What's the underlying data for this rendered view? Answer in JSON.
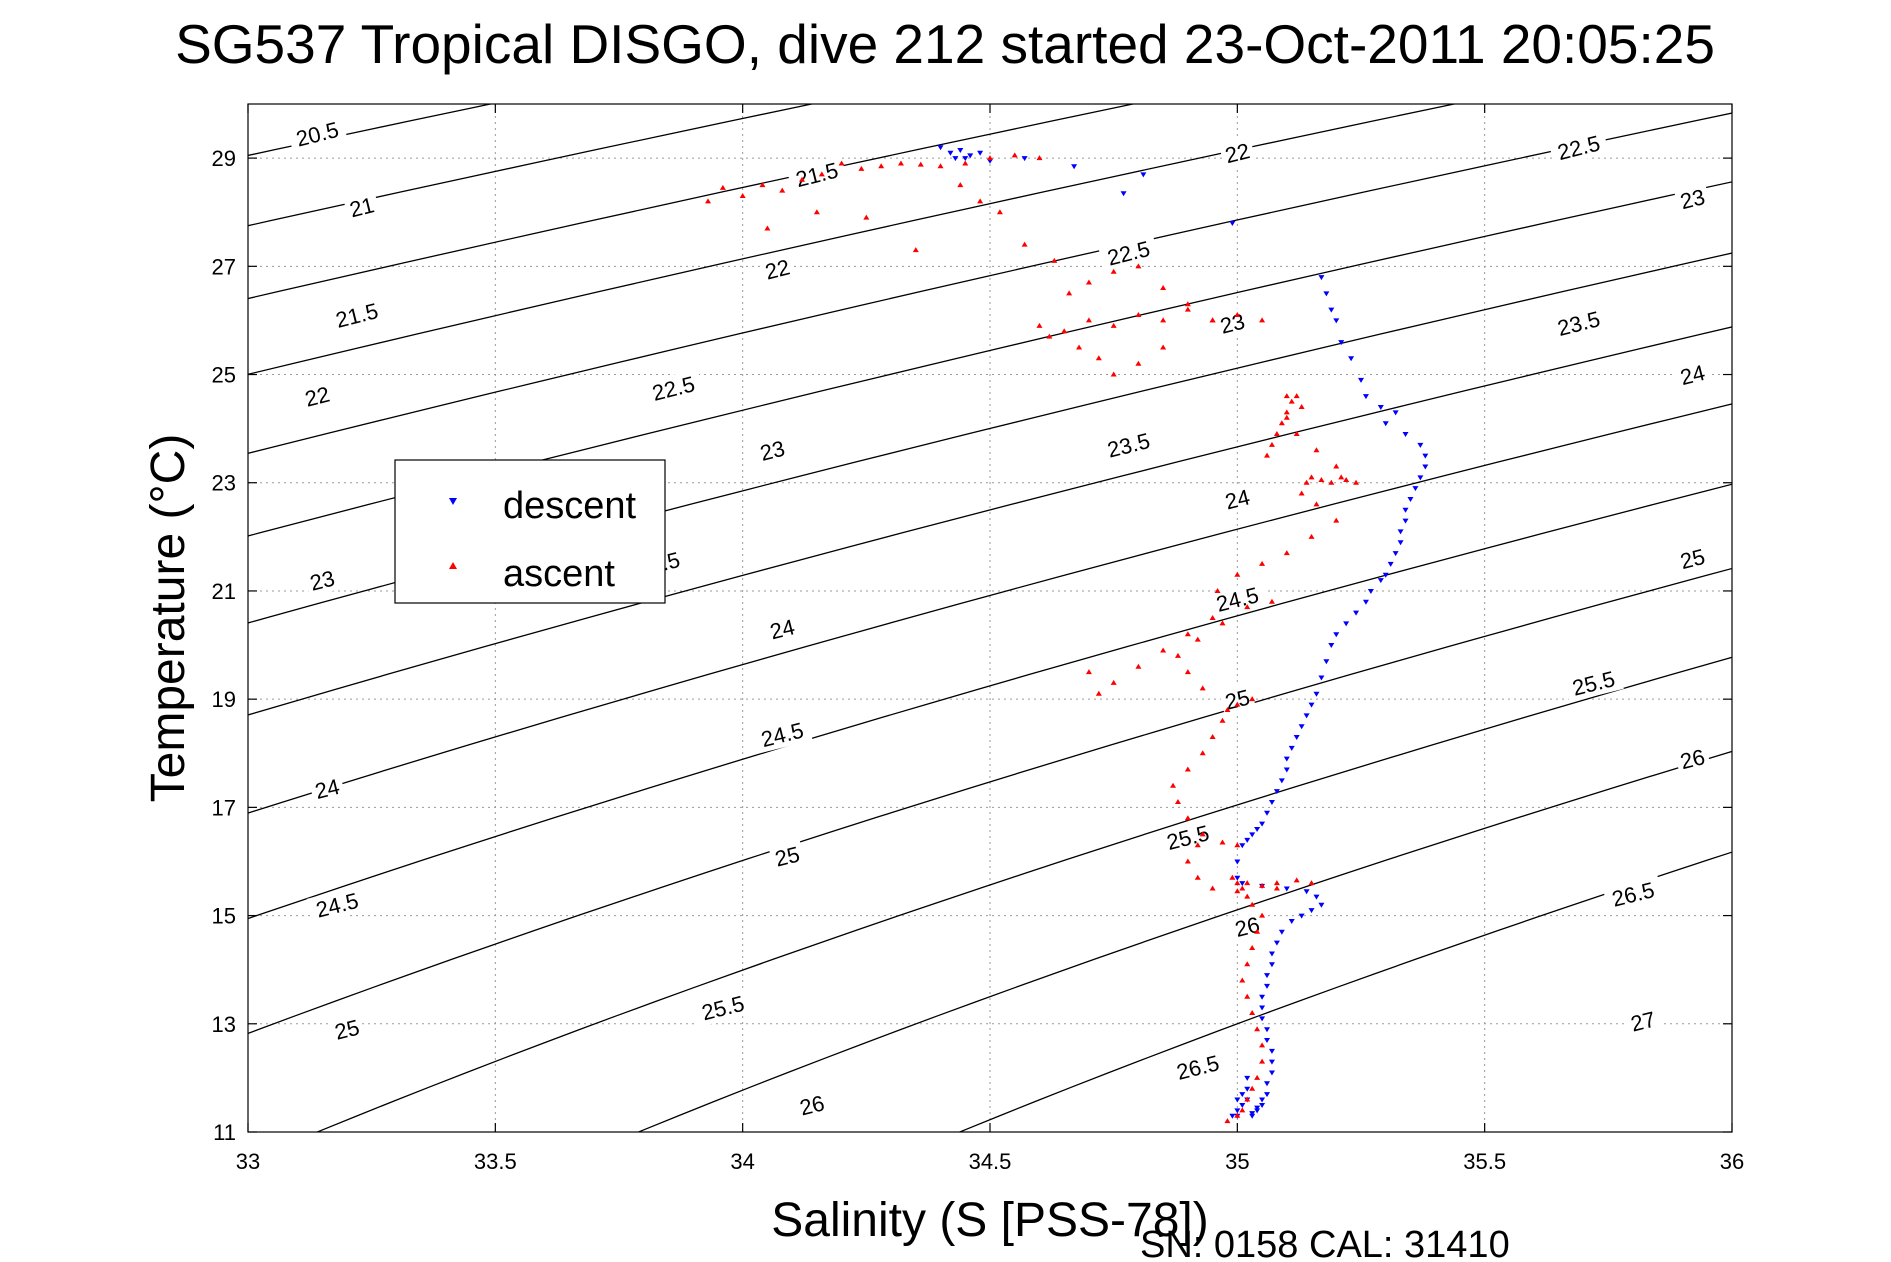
{
  "chart_data": {
    "type": "scatter",
    "title": "SG537 Tropical DISGO, dive 212 started 23-Oct-2011 20:05:25",
    "xlabel": "Salinity (S [PSS-78])",
    "ylabel": "Temperature (°C)",
    "xlim": [
      33,
      36
    ],
    "ylim": [
      11,
      30
    ],
    "x_ticks": [
      33,
      33.5,
      34,
      34.5,
      35,
      35.5,
      36
    ],
    "x_tick_labels": [
      "33",
      "33.5",
      "34",
      "34.5",
      "35",
      "35.5",
      "36"
    ],
    "y_ticks": [
      11,
      13,
      15,
      17,
      19,
      21,
      23,
      25,
      27,
      29
    ],
    "y_tick_labels": [
      "11",
      "13",
      "15",
      "17",
      "19",
      "21",
      "23",
      "25",
      "27",
      "29"
    ],
    "grid": true,
    "legend_position": "middle-left",
    "footnote": "SN: 0158  CAL: 31410",
    "contours": {
      "description_unit": "sigma-theta",
      "levels": [
        20.5,
        21,
        21.5,
        22,
        22.5,
        23,
        23.5,
        24,
        24.5,
        25,
        25.5,
        26,
        26.5,
        27
      ],
      "labels": [
        {
          "text": "20.5",
          "s": 33.14,
          "t": 29.45
        },
        {
          "text": "21",
          "s": 33.23,
          "t": 28.1
        },
        {
          "text": "21.5",
          "s": 33.22,
          "t": 26.1
        },
        {
          "text": "22",
          "s": 33.14,
          "t": 24.6
        },
        {
          "text": "23",
          "s": 33.15,
          "t": 21.2
        },
        {
          "text": "24",
          "s": 33.16,
          "t": 17.35
        },
        {
          "text": "24.5",
          "s": 33.18,
          "t": 15.2
        },
        {
          "text": "25",
          "s": 33.2,
          "t": 12.9
        },
        {
          "text": "21.5",
          "s": 34.15,
          "t": 28.7
        },
        {
          "text": "22",
          "s": 34.07,
          "t": 26.95
        },
        {
          "text": "22.5",
          "s": 33.86,
          "t": 24.75
        },
        {
          "text": "23",
          "s": 34.06,
          "t": 23.6
        },
        {
          "text": "23.5",
          "s": 33.83,
          "t": 21.5
        },
        {
          "text": "24",
          "s": 34.08,
          "t": 20.3
        },
        {
          "text": "24.5",
          "s": 34.08,
          "t": 18.35
        },
        {
          "text": "25",
          "s": 34.09,
          "t": 16.1
        },
        {
          "text": "25.5",
          "s": 33.96,
          "t": 13.3
        },
        {
          "text": "26",
          "s": 34.14,
          "t": 11.5
        },
        {
          "text": "22.5",
          "s": 34.78,
          "t": 27.25
        },
        {
          "text": "23",
          "s": 34.99,
          "t": 25.95
        },
        {
          "text": "23.5",
          "s": 34.78,
          "t": 23.7
        },
        {
          "text": "24",
          "s": 35.0,
          "t": 22.7
        },
        {
          "text": "24.5",
          "s": 35.0,
          "t": 20.85
        },
        {
          "text": "25",
          "s": 35.0,
          "t": 19.0
        },
        {
          "text": "25.5",
          "s": 34.9,
          "t": 16.45
        },
        {
          "text": "26",
          "s": 35.02,
          "t": 14.8
        },
        {
          "text": "26.5",
          "s": 34.92,
          "t": 12.2
        },
        {
          "text": "22",
          "s": 35.0,
          "t": 29.1
        },
        {
          "text": "22.5",
          "s": 35.69,
          "t": 29.2
        },
        {
          "text": "23",
          "s": 35.92,
          "t": 28.25
        },
        {
          "text": "23.5",
          "s": 35.69,
          "t": 25.95
        },
        {
          "text": "24",
          "s": 35.92,
          "t": 25.0
        },
        {
          "text": "25",
          "s": 35.92,
          "t": 21.6
        },
        {
          "text": "25.5",
          "s": 35.72,
          "t": 19.3
        },
        {
          "text": "26",
          "s": 35.92,
          "t": 17.9
        },
        {
          "text": "26.5",
          "s": 35.8,
          "t": 15.4
        },
        {
          "text": "27",
          "s": 35.82,
          "t": 13.05
        }
      ]
    },
    "series": [
      {
        "name": "descent",
        "color": "#0000ff",
        "marker": "triangle-down",
        "s": [
          34.4,
          34.42,
          34.43,
          34.44,
          34.45,
          34.46,
          34.48,
          34.5,
          34.57,
          34.67,
          34.77,
          34.81,
          34.99,
          35.17,
          35.18,
          35.19,
          35.2,
          35.21,
          35.23,
          35.25,
          35.26,
          35.29,
          35.3,
          35.32,
          35.34,
          35.37,
          35.38,
          35.38,
          35.37,
          35.36,
          35.35,
          35.34,
          35.34,
          35.33,
          35.33,
          35.32,
          35.31,
          35.3,
          35.29,
          35.27,
          35.26,
          35.24,
          35.22,
          35.2,
          35.19,
          35.18,
          35.17,
          35.16,
          35.15,
          35.14,
          35.13,
          35.12,
          35.11,
          35.1,
          35.1,
          35.09,
          35.08,
          35.07,
          35.06,
          35.05,
          35.04,
          35.03,
          35.02,
          35.01,
          35.0,
          35.0,
          35.01,
          35.05,
          35.1,
          35.14,
          35.16,
          35.17,
          35.15,
          35.13,
          35.11,
          35.09,
          35.08,
          35.07,
          35.07,
          35.06,
          35.06,
          35.05,
          35.05,
          35.05,
          35.06,
          35.06,
          35.07,
          35.07,
          35.07,
          35.06,
          35.06,
          35.05,
          35.05,
          35.04,
          35.04,
          35.03,
          35.03,
          35.02,
          35.02,
          35.02,
          35.01,
          35.01,
          35.0,
          35.0,
          35.0,
          34.99
        ],
        "t": [
          29.2,
          29.1,
          29.0,
          29.15,
          29.0,
          29.05,
          29.1,
          28.95,
          29.0,
          28.85,
          28.35,
          28.7,
          27.8,
          26.8,
          26.5,
          26.2,
          26.0,
          25.6,
          25.3,
          24.9,
          24.6,
          24.4,
          24.1,
          24.3,
          23.9,
          23.7,
          23.5,
          23.3,
          23.1,
          22.9,
          22.7,
          22.5,
          22.3,
          22.1,
          21.9,
          21.7,
          21.5,
          21.3,
          21.2,
          21.0,
          20.8,
          20.6,
          20.4,
          20.2,
          20.0,
          19.7,
          19.4,
          19.1,
          18.9,
          18.7,
          18.5,
          18.3,
          18.1,
          17.9,
          17.7,
          17.5,
          17.3,
          17.1,
          16.9,
          16.7,
          16.6,
          16.5,
          16.4,
          16.3,
          16.0,
          15.7,
          15.6,
          15.55,
          15.5,
          15.45,
          15.35,
          15.2,
          15.1,
          15.0,
          14.9,
          14.7,
          14.5,
          14.3,
          14.1,
          13.9,
          13.7,
          13.5,
          13.3,
          13.1,
          12.9,
          12.7,
          12.5,
          12.3,
          12.1,
          11.9,
          11.7,
          11.6,
          11.5,
          11.45,
          11.4,
          11.35,
          11.3,
          11.6,
          11.8,
          12.0,
          11.5,
          11.7,
          11.4,
          11.6,
          11.3,
          11.3
        ]
      },
      {
        "name": "ascent",
        "color": "#ff0000",
        "marker": "triangle-up",
        "s": [
          34.98,
          35.0,
          35.01,
          35.02,
          35.03,
          35.04,
          35.05,
          35.05,
          35.04,
          35.03,
          35.02,
          35.01,
          35.02,
          35.03,
          35.04,
          35.05,
          35.03,
          35.02,
          35.01,
          35.0,
          34.99,
          35.02,
          35.05,
          35.08,
          35.12,
          35.15,
          35.08,
          35.0,
          34.95,
          34.92,
          34.9,
          34.92,
          34.97,
          35.0,
          34.93,
          34.9,
          34.88,
          34.87,
          34.9,
          34.93,
          34.95,
          34.97,
          35.0,
          35.03,
          34.98,
          34.93,
          34.9,
          34.88,
          34.92,
          34.97,
          35.02,
          35.07,
          34.95,
          34.9,
          34.85,
          34.8,
          34.75,
          34.72,
          34.7,
          34.96,
          35.0,
          35.05,
          35.1,
          35.15,
          35.2,
          35.16,
          35.13,
          35.14,
          35.15,
          35.17,
          35.19,
          35.21,
          35.22,
          35.24,
          35.2,
          35.16,
          35.12,
          35.1,
          35.13,
          35.12,
          35.11,
          35.1,
          35.09,
          35.08,
          35.07,
          35.06,
          35.1,
          35.05,
          35.0,
          34.95,
          34.9,
          34.85,
          34.8,
          34.75,
          34.7,
          34.65,
          34.62,
          34.6,
          34.66,
          34.7,
          34.75,
          34.8,
          34.85,
          34.9,
          34.95,
          34.85,
          34.8,
          34.75,
          34.72,
          34.68,
          34.63,
          34.57,
          34.52,
          34.48,
          34.44,
          34.4,
          34.36,
          34.32,
          34.28,
          34.24,
          34.2,
          34.16,
          34.12,
          34.08,
          34.04,
          34.0,
          33.96,
          33.93,
          34.05,
          34.15,
          34.25,
          34.35,
          34.45,
          34.5,
          34.55,
          34.6
        ],
        "t": [
          11.2,
          11.3,
          11.4,
          11.6,
          11.8,
          12.0,
          12.3,
          12.6,
          12.9,
          13.2,
          13.5,
          13.8,
          14.1,
          14.4,
          14.7,
          15.0,
          15.2,
          15.35,
          15.5,
          15.6,
          15.7,
          15.6,
          15.55,
          15.6,
          15.65,
          15.6,
          15.5,
          15.45,
          15.5,
          15.7,
          16.0,
          16.3,
          16.35,
          16.3,
          16.5,
          16.8,
          17.1,
          17.4,
          17.7,
          18.0,
          18.3,
          18.6,
          18.9,
          19.0,
          18.8,
          19.2,
          19.5,
          19.8,
          20.1,
          20.4,
          20.7,
          20.8,
          20.5,
          20.2,
          19.9,
          19.6,
          19.3,
          19.1,
          19.5,
          21.0,
          21.3,
          21.5,
          21.7,
          22.0,
          22.3,
          22.6,
          22.8,
          23.0,
          23.1,
          23.05,
          23.0,
          23.1,
          23.05,
          23.0,
          23.3,
          23.6,
          23.9,
          24.2,
          24.4,
          24.6,
          24.5,
          24.3,
          24.1,
          23.9,
          23.7,
          23.5,
          24.6,
          26.0,
          26.1,
          26.0,
          26.2,
          26.0,
          26.1,
          25.9,
          26.0,
          25.8,
          25.7,
          25.9,
          26.5,
          26.7,
          26.9,
          27.0,
          26.6,
          26.3,
          26.0,
          25.5,
          25.2,
          25.0,
          25.3,
          25.5,
          27.1,
          27.4,
          28.0,
          28.2,
          28.5,
          28.85,
          28.88,
          28.9,
          28.85,
          28.8,
          28.9,
          28.7,
          28.6,
          28.4,
          28.5,
          28.3,
          28.45,
          28.2,
          27.7,
          28.0,
          27.9,
          27.3,
          28.9,
          29.0,
          29.05,
          29.0
        ]
      }
    ]
  }
}
